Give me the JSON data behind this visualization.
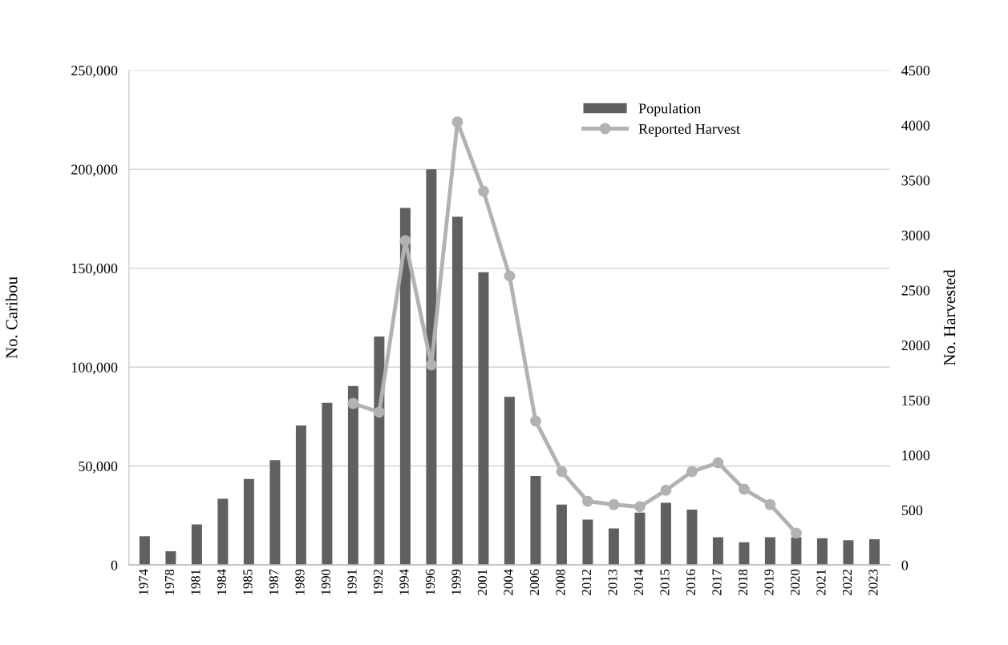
{
  "chart_data": {
    "type": "bar",
    "ylabel": "No. Caribou",
    "y2label": "No. Harvested",
    "categories": [
      "1974",
      "1978",
      "1981",
      "1984",
      "1985",
      "1987",
      "1989",
      "1990",
      "1991",
      "1992",
      "1994",
      "1996",
      "1999",
      "2001",
      "2004",
      "2006",
      "2008",
      "2012",
      "2013",
      "2014",
      "2015",
      "2016",
      "2017",
      "2018",
      "2019",
      "2020",
      "2021",
      "2022",
      "2023"
    ],
    "series": [
      {
        "name": "Population",
        "color": "#606060",
        "values": [
          14500,
          7000,
          20500,
          33500,
          43500,
          53000,
          70500,
          82000,
          90500,
          115500,
          180500,
          200000,
          176000,
          148000,
          85000,
          45000,
          30500,
          23000,
          18500,
          26500,
          31500,
          28000,
          14000,
          11500,
          14000,
          14000,
          13500,
          12500,
          13000
        ]
      },
      {
        "name": "Reported Harvest",
        "type": "line",
        "axis": "y2",
        "color": "#b2b2b2",
        "marker": "circle",
        "values": [
          null,
          null,
          null,
          null,
          null,
          null,
          null,
          null,
          1470,
          1390,
          2950,
          1820,
          4030,
          3400,
          2630,
          1310,
          850,
          580,
          550,
          530,
          680,
          850,
          930,
          690,
          550,
          290,
          null,
          null,
          null
        ]
      }
    ],
    "ylim": [
      0,
      250000
    ],
    "yticks": [
      {
        "value": 0,
        "label": "0"
      },
      {
        "value": 50000,
        "label": "50,000"
      },
      {
        "value": 100000,
        "label": "100,000"
      },
      {
        "value": 150000,
        "label": "150,000"
      },
      {
        "value": 200000,
        "label": "200,000"
      },
      {
        "value": 250000,
        "label": "250,000"
      }
    ],
    "y2lim": [
      0,
      4500
    ],
    "y2ticks": [
      0,
      500,
      1000,
      1500,
      2000,
      2500,
      3000,
      3500,
      4000,
      4500
    ],
    "grid": "y",
    "legend": "top"
  }
}
